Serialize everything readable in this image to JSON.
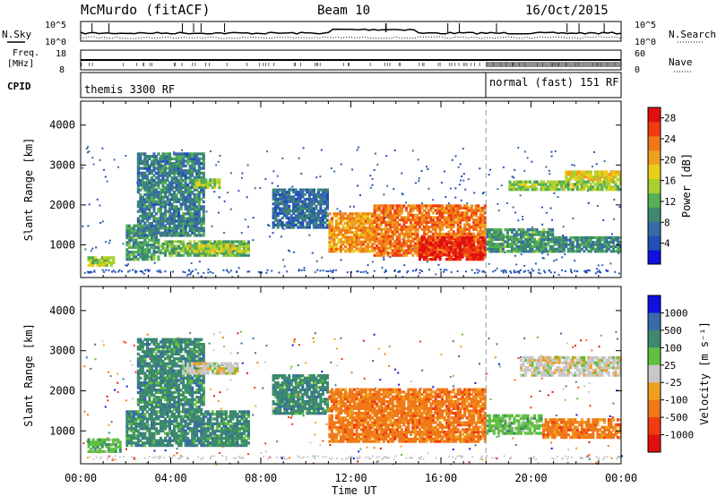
{
  "header": {
    "station": "McMurdo (fitACF)",
    "beam": "Beam 10",
    "date": "16/Oct/2015"
  },
  "top_panels": {
    "nsky_label": "N.Sky",
    "nsearch_label": "N.Search",
    "noise_ticks": [
      "10^5",
      "10^0"
    ],
    "freq_label": "Freq.",
    "freq_unit": "[MHz]",
    "freq_ticks": [
      "18",
      "8"
    ],
    "nave_label": "Nave",
    "nave_ticks": [
      "60",
      "0"
    ],
    "cpid_label": "CPID",
    "cpid_left": "themis 3300 RF",
    "cpid_right": "normal (fast) 151 RF"
  },
  "colors": {
    "power_scale": [
      "#1010e0",
      "#2050b8",
      "#3a6aa8",
      "#3d8a6e",
      "#55b055",
      "#a8d030",
      "#e8d018",
      "#f0a020",
      "#f07818",
      "#f03c10",
      "#e01010"
    ],
    "velocity_scale": [
      "#e01010",
      "#f03c10",
      "#f07818",
      "#f0a020",
      "#c8c8c8",
      "#60c040",
      "#3d8a6e",
      "#3a6aa8",
      "#1010e0"
    ]
  },
  "chart_data": [
    {
      "type": "heatmap",
      "name": "power",
      "xlabel": "Time UT",
      "ylabel": "Slant Range [km]",
      "x_ticks": [
        "00:00",
        "04:00",
        "08:00",
        "12:00",
        "16:00",
        "20:00",
        "00:00"
      ],
      "y_ticks": [
        1000,
        2000,
        3000,
        4000
      ],
      "xlim_hours": [
        0,
        24
      ],
      "ylim_km": [
        180,
        4600
      ],
      "colorbar_label": "Power [dB]",
      "colorbar_ticks": [
        4,
        8,
        12,
        16,
        20,
        24,
        28
      ],
      "colorbar_range": [
        0,
        30
      ],
      "echo_regions": [
        {
          "t0": 0.3,
          "t1": 1.5,
          "r0": 450,
          "r1": 700,
          "level": 14
        },
        {
          "t0": 2.0,
          "t1": 3.5,
          "r0": 600,
          "r1": 1500,
          "level": 10
        },
        {
          "t0": 3.5,
          "t1": 7.5,
          "r0": 700,
          "r1": 1100,
          "level": 12
        },
        {
          "t0": 4.5,
          "t1": 7.5,
          "r0": 800,
          "r1": 1000,
          "level": 16
        },
        {
          "t0": 2.5,
          "t1": 5.5,
          "r0": 1200,
          "r1": 3300,
          "level": 8
        },
        {
          "t0": 5.0,
          "t1": 6.2,
          "r0": 2400,
          "r1": 2650,
          "level": 14
        },
        {
          "t0": 8.5,
          "t1": 11.0,
          "r0": 1400,
          "r1": 2400,
          "level": 6
        },
        {
          "t0": 11.0,
          "t1": 13.0,
          "r0": 800,
          "r1": 1800,
          "level": 22
        },
        {
          "t0": 13.0,
          "t1": 18.0,
          "r0": 700,
          "r1": 2000,
          "level": 24
        },
        {
          "t0": 15.0,
          "t1": 18.0,
          "r0": 600,
          "r1": 1200,
          "level": 29
        },
        {
          "t0": 18.0,
          "t1": 21.0,
          "r0": 800,
          "r1": 1400,
          "level": 10
        },
        {
          "t0": 19.0,
          "t1": 24.0,
          "r0": 2350,
          "r1": 2600,
          "level": 14
        },
        {
          "t0": 21.5,
          "t1": 24.0,
          "r0": 2600,
          "r1": 2850,
          "level": 18
        },
        {
          "t0": 21.0,
          "t1": 24.0,
          "r0": 800,
          "r1": 1200,
          "level": 9
        }
      ]
    },
    {
      "type": "heatmap",
      "name": "velocity",
      "xlabel": "Time UT",
      "ylabel": "Slant Range [km]",
      "x_ticks": [
        "00:00",
        "04:00",
        "08:00",
        "12:00",
        "16:00",
        "20:00",
        "00:00"
      ],
      "y_ticks": [
        1000,
        2000,
        3000,
        4000
      ],
      "xlim_hours": [
        0,
        24
      ],
      "ylim_km": [
        180,
        4600
      ],
      "colorbar_label": "Velocity [m s⁻¹]",
      "colorbar_ticks": [
        "1000",
        "500",
        "100",
        "25",
        "-25",
        "-100",
        "-500",
        "-1000"
      ],
      "echo_regions": [
        {
          "t0": 0.3,
          "t1": 1.8,
          "r0": 450,
          "r1": 800,
          "vclass": "slow-pos"
        },
        {
          "t0": 2.0,
          "t1": 7.5,
          "r0": 600,
          "r1": 1500,
          "vclass": "mid-pos"
        },
        {
          "t0": 2.5,
          "t1": 5.5,
          "r0": 1500,
          "r1": 3300,
          "vclass": "mid-pos"
        },
        {
          "t0": 4.5,
          "t1": 7.0,
          "r0": 2400,
          "r1": 2700,
          "vclass": "near-zero"
        },
        {
          "t0": 8.5,
          "t1": 11.0,
          "r0": 1400,
          "r1": 2400,
          "vclass": "mid-pos"
        },
        {
          "t0": 11.0,
          "t1": 18.0,
          "r0": 700,
          "r1": 2050,
          "vclass": "mid-neg"
        },
        {
          "t0": 18.0,
          "t1": 20.5,
          "r0": 900,
          "r1": 1400,
          "vclass": "slow-pos"
        },
        {
          "t0": 19.5,
          "t1": 24.0,
          "r0": 2350,
          "r1": 2850,
          "vclass": "near-zero"
        },
        {
          "t0": 20.5,
          "t1": 24.0,
          "r0": 800,
          "r1": 1300,
          "vclass": "mid-neg"
        }
      ]
    }
  ]
}
